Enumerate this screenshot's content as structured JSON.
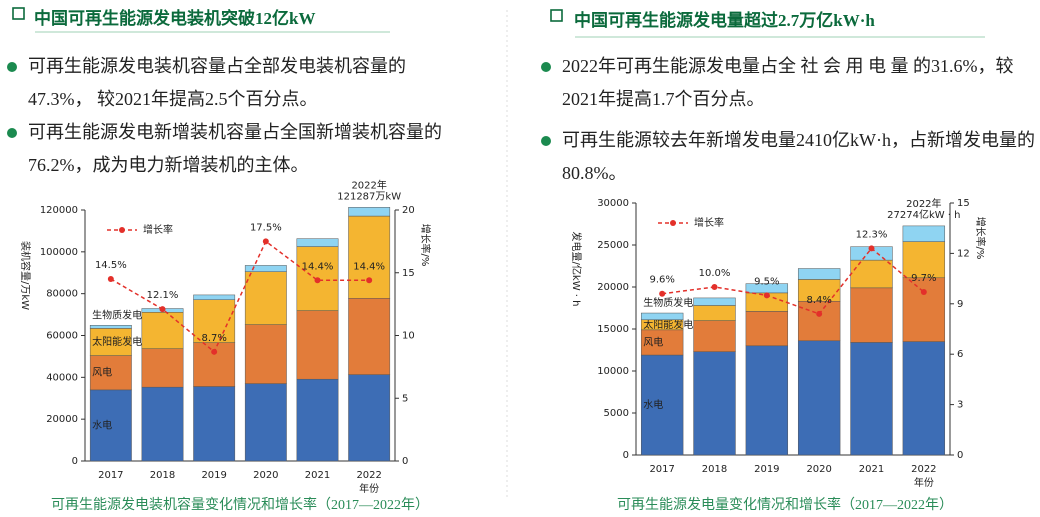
{
  "panels": [
    {
      "heading": "中国可再生能源发电装机突破12亿kW",
      "bullets": [
        "可再生能源发电装机容量占全部发电装机容量的47.3%， 较2021年提高2.5个百分点。",
        "可再生能源发电新增装机容量占全国新增装机容量的76.2%，成为电力新增装机的主体。"
      ],
      "caption": "可再生能源发电装机容量变化情况和增长率（2017—2022年）"
    },
    {
      "heading": "中国可再生能源发电量超过2.7万亿kW·h",
      "bullets": [
        "2022年可再生能源发电量占全 社 会 用 电 量 的31.6%，较2021年提高1.7个百分点。",
        "可再生能源较去年新增发电量2410亿kW·h，占新增发电量的80.8%。"
      ],
      "caption": "可再生能源发电量变化情况和增长率（2017—2022年）"
    }
  ],
  "chart_data": [
    {
      "type": "bar",
      "stacked": true,
      "categories": [
        "2017",
        "2018",
        "2019",
        "2020",
        "2021",
        "2022"
      ],
      "x_label": "年份",
      "y_label": "装机容量/万kW",
      "y2_label": "增长率/%",
      "ylim": [
        0,
        120000
      ],
      "yticks": [
        0,
        20000,
        40000,
        60000,
        80000,
        100000,
        120000
      ],
      "y2lim": [
        0,
        20
      ],
      "y2ticks": [
        0,
        5,
        10,
        15,
        20
      ],
      "annotation": [
        "2022年",
        "121287万kW"
      ],
      "series": [
        {
          "name": "水电",
          "color": "#3d6db5",
          "values": [
            34000,
            35300,
            35600,
            37000,
            39100,
            41300
          ]
        },
        {
          "name": "风电",
          "color": "#e27c3a",
          "values": [
            16400,
            18400,
            21000,
            28200,
            32800,
            36500
          ]
        },
        {
          "name": "太阳能发电",
          "color": "#f4b531",
          "values": [
            13000,
            17400,
            20500,
            25300,
            30600,
            39300
          ]
        },
        {
          "name": "生物质发电",
          "color": "#8fd4f2",
          "values": [
            1500,
            1800,
            2300,
            3000,
            3800,
            4187
          ]
        },
        {
          "name": "增长率",
          "type": "line",
          "axis": "y2",
          "color": "#e3302a",
          "values": [
            14.5,
            12.1,
            8.7,
            17.5,
            14.4,
            14.4
          ],
          "value_labels": [
            "14.5%",
            "12.1%",
            "8.7%",
            "17.5%",
            "14.4%",
            "14.4%"
          ]
        }
      ]
    },
    {
      "type": "bar",
      "stacked": true,
      "categories": [
        "2017",
        "2018",
        "2019",
        "2020",
        "2021",
        "2022"
      ],
      "x_label": "年份",
      "y_label": "发电量/亿kW · h",
      "y2_label": "增长率/%",
      "ylim": [
        0,
        30000
      ],
      "yticks": [
        0,
        5000,
        10000,
        15000,
        20000,
        25000,
        30000
      ],
      "y2lim": [
        0,
        15
      ],
      "y2ticks": [
        0,
        3,
        6,
        9,
        12,
        15
      ],
      "annotation": [
        "2022年",
        "27274亿kW · h"
      ],
      "series": [
        {
          "name": "水电",
          "color": "#3d6db5",
          "values": [
            11900,
            12300,
            13000,
            13600,
            13400,
            13500
          ]
        },
        {
          "name": "风电",
          "color": "#e27c3a",
          "values": [
            3000,
            3700,
            4100,
            4700,
            6500,
            7600
          ]
        },
        {
          "name": "太阳能发电",
          "color": "#f4b531",
          "values": [
            1200,
            1800,
            2200,
            2600,
            3300,
            4300
          ]
        },
        {
          "name": "生物质发电",
          "color": "#8fd4f2",
          "values": [
            800,
            900,
            1100,
            1300,
            1600,
            1874
          ]
        },
        {
          "name": "增长率",
          "type": "line",
          "axis": "y2",
          "color": "#e3302a",
          "values": [
            9.6,
            10.0,
            9.5,
            8.4,
            12.3,
            9.7
          ],
          "value_labels": [
            "9.6%",
            "10.0%",
            "9.5%",
            "8.4%",
            "12.3%",
            "9.7%"
          ]
        }
      ]
    }
  ]
}
